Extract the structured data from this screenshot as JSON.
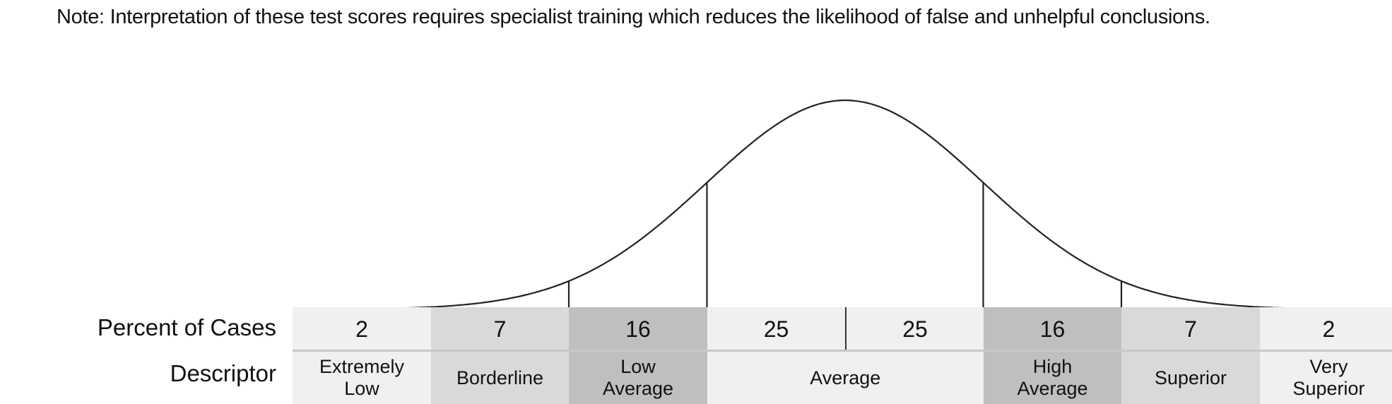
{
  "note": "Note: Interpretation of these test scores requires specialist training which reduces the likelihood of false and unhelpful conclusions.",
  "row_labels": {
    "percent": "Percent of Cases",
    "descriptor": "Descriptor"
  },
  "percent_cells": [
    {
      "value": "2",
      "color": "#f0f0f0"
    },
    {
      "value": "7",
      "color": "#d9d9d9"
    },
    {
      "value": "16",
      "color": "#bfbfbf"
    },
    {
      "value": "25",
      "color": "#f0f0f0"
    },
    {
      "value": "25",
      "color": "#f0f0f0"
    },
    {
      "value": "16",
      "color": "#bfbfbf"
    },
    {
      "value": "7",
      "color": "#d9d9d9"
    },
    {
      "value": "2",
      "color": "#f0f0f0"
    }
  ],
  "descriptors": [
    {
      "line1": "Extremely",
      "line2": "Low",
      "color": "#f0f0f0"
    },
    {
      "line1": "Borderline",
      "line2": "",
      "color": "#d9d9d9"
    },
    {
      "line1": "Low",
      "line2": "Average",
      "color": "#bfbfbf"
    },
    {
      "line1": "Average",
      "line2": "",
      "color": "#f0f0f0"
    },
    {
      "line1": "High",
      "line2": "Average",
      "color": "#bfbfbf"
    },
    {
      "line1": "Superior",
      "line2": "",
      "color": "#d9d9d9"
    },
    {
      "line1": "Very",
      "line2": "Superior",
      "color": "#f0f0f0"
    }
  ]
}
